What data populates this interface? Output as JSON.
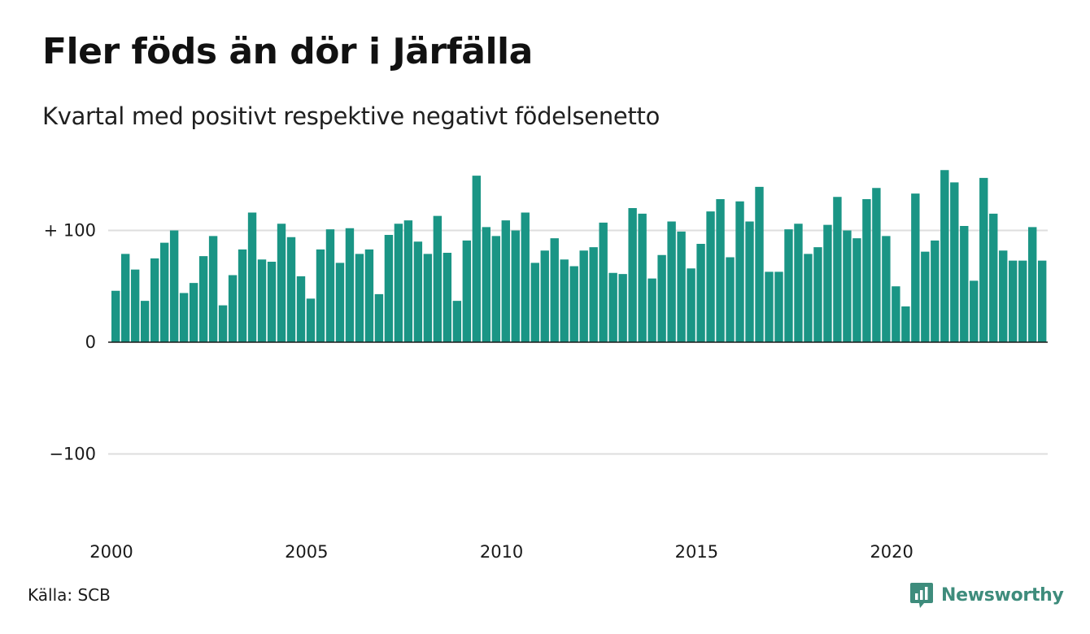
{
  "title": "Fler föds än dör i Järfälla",
  "subtitle": "Kvartal med positivt respektive negativt födelsenetto",
  "source": "Källa: SCB",
  "brand": {
    "name": "Newsworthy",
    "icon": "newsworthy-logo-icon",
    "color": "#3e8c7c"
  },
  "colors": {
    "bar_positive": "#1a9585",
    "grid": "#dedede",
    "zero_line": "#1a1a1a"
  },
  "chart_data": {
    "type": "bar",
    "xlabel": "",
    "ylabel": "",
    "ylim": [
      -190,
      160
    ],
    "y_ticks": [
      {
        "value": 100,
        "label": "+ 100"
      },
      {
        "value": 0,
        "label": "0"
      },
      {
        "value": -100,
        "label": "−100"
      }
    ],
    "x_ticks": [
      "2000",
      "2005",
      "2010",
      "2015",
      "2020"
    ],
    "first_period": "2000 Q1",
    "values": [
      46,
      79,
      65,
      37,
      75,
      89,
      100,
      44,
      53,
      77,
      95,
      33,
      60,
      83,
      116,
      74,
      72,
      106,
      94,
      59,
      39,
      83,
      101,
      71,
      102,
      79,
      83,
      43,
      96,
      106,
      109,
      90,
      79,
      113,
      80,
      37,
      91,
      149,
      103,
      95,
      109,
      100,
      116,
      71,
      82,
      93,
      74,
      68,
      82,
      85,
      107,
      62,
      61,
      120,
      115,
      57,
      78,
      108,
      99,
      66,
      88,
      117,
      128,
      76,
      126,
      108,
      139,
      63,
      63,
      101,
      106,
      79,
      85,
      105,
      130,
      100,
      93,
      128,
      138,
      95,
      50,
      32,
      133,
      81,
      91,
      154,
      143,
      104,
      55,
      147,
      115,
      82,
      73,
      73,
      103,
      73
    ]
  }
}
